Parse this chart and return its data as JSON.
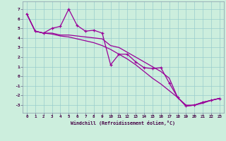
{
  "xlabel": "Windchill (Refroidissement éolien,°C)",
  "bg_color": "#cceedd",
  "line_color": "#990099",
  "xlim": [
    -0.5,
    23.5
  ],
  "ylim": [
    -3.8,
    7.8
  ],
  "xticks": [
    0,
    1,
    2,
    3,
    4,
    5,
    6,
    7,
    8,
    9,
    10,
    11,
    12,
    13,
    14,
    15,
    16,
    17,
    18,
    19,
    20,
    21,
    22,
    23
  ],
  "yticks": [
    -3,
    -2,
    -1,
    0,
    1,
    2,
    3,
    4,
    5,
    6,
    7
  ],
  "line1_x": [
    0,
    1,
    2,
    3,
    4,
    5,
    6,
    7,
    8,
    9,
    10,
    11,
    12,
    13,
    14,
    15,
    16,
    17,
    18,
    19,
    20,
    21,
    22,
    23
  ],
  "line1_y": [
    6.5,
    4.7,
    4.5,
    5.0,
    5.2,
    7.0,
    5.3,
    4.7,
    4.8,
    4.5,
    1.2,
    2.3,
    2.3,
    1.5,
    0.9,
    0.8,
    0.9,
    -0.7,
    -2.2,
    -3.1,
    -3.0,
    -2.7,
    -2.5,
    -2.3
  ],
  "line2_x": [
    0,
    1,
    2,
    3,
    4,
    5,
    6,
    7,
    8,
    9,
    10,
    11,
    12,
    13,
    14,
    15,
    16,
    17,
    18,
    19,
    20,
    21,
    22,
    23
  ],
  "line2_y": [
    6.5,
    4.7,
    4.5,
    4.5,
    4.3,
    4.3,
    4.2,
    4.1,
    4.0,
    3.9,
    3.2,
    3.0,
    2.5,
    2.0,
    1.5,
    1.0,
    0.5,
    -0.2,
    -2.2,
    -3.1,
    -3.0,
    -2.7,
    -2.5,
    -2.3
  ],
  "line3_x": [
    0,
    1,
    2,
    3,
    4,
    5,
    6,
    7,
    8,
    9,
    10,
    11,
    12,
    13,
    14,
    15,
    16,
    17,
    18,
    19,
    20,
    21,
    22,
    23
  ],
  "line3_y": [
    6.5,
    4.7,
    4.5,
    4.4,
    4.2,
    4.1,
    3.9,
    3.7,
    3.5,
    3.2,
    2.8,
    2.3,
    1.8,
    1.2,
    0.5,
    -0.2,
    -0.8,
    -1.5,
    -2.2,
    -3.0,
    -3.0,
    -2.8,
    -2.5,
    -2.3
  ]
}
